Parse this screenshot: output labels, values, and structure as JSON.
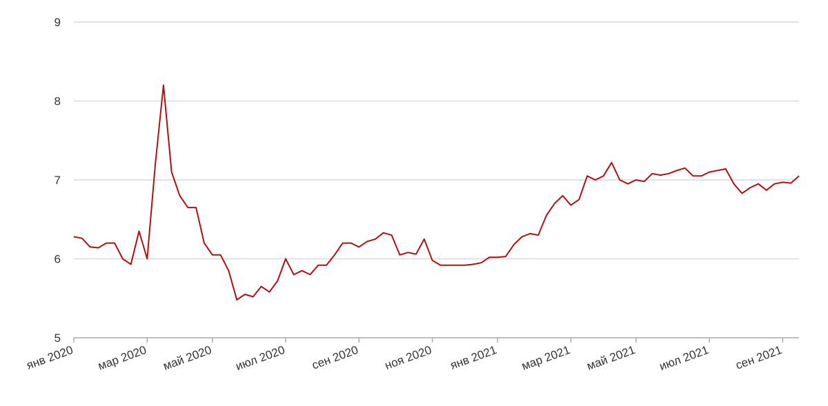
{
  "chart_data": {
    "type": "line",
    "categories": [
      "янв 2020",
      null,
      null,
      null,
      null,
      null,
      null,
      null,
      null,
      "мар 2020",
      null,
      null,
      null,
      null,
      null,
      null,
      null,
      "май 2020",
      null,
      null,
      null,
      null,
      null,
      null,
      null,
      null,
      "июл 2020",
      null,
      null,
      null,
      null,
      null,
      null,
      null,
      null,
      "сен 2020",
      null,
      null,
      null,
      null,
      null,
      null,
      null,
      null,
      "ноя 2020",
      null,
      null,
      null,
      null,
      null,
      null,
      null,
      "янв 2021",
      null,
      null,
      null,
      null,
      null,
      null,
      null,
      null,
      "мар 2021",
      null,
      null,
      null,
      null,
      null,
      null,
      null,
      "май 2021",
      null,
      null,
      null,
      null,
      null,
      null,
      null,
      null,
      "июл 2021",
      null,
      null,
      null,
      null,
      null,
      null,
      null,
      null,
      "сен 2021",
      null,
      null
    ],
    "series": [
      {
        "color": "#b30d0d",
        "values": [
          6.28,
          6.26,
          6.15,
          6.14,
          6.2,
          6.2,
          6.0,
          5.93,
          6.35,
          6.0,
          7.2,
          8.2,
          7.1,
          6.8,
          6.65,
          6.65,
          6.2,
          6.05,
          6.05,
          5.85,
          5.48,
          5.55,
          5.52,
          5.65,
          5.58,
          5.72,
          6.0,
          5.8,
          5.85,
          5.8,
          5.92,
          5.92,
          6.05,
          6.2,
          6.2,
          6.15,
          6.22,
          6.25,
          6.33,
          6.3,
          6.05,
          6.08,
          6.06,
          6.25,
          5.98,
          5.92,
          5.92,
          5.92,
          5.92,
          5.93,
          5.95,
          6.02,
          6.02,
          6.03,
          6.18,
          6.28,
          6.32,
          6.3,
          6.55,
          6.7,
          6.8,
          6.68,
          6.75,
          7.05,
          7.0,
          7.05,
          7.22,
          7.0,
          6.95,
          7.0,
          6.98,
          7.08,
          7.06,
          7.08,
          7.12,
          7.15,
          7.05,
          7.05,
          7.1,
          7.12,
          7.14,
          6.95,
          6.83,
          6.9,
          6.95,
          6.87,
          6.95,
          6.97,
          6.96,
          7.05
        ]
      }
    ],
    "ylim": [
      5,
      9
    ],
    "yticks": [
      5,
      6,
      7,
      8,
      9
    ],
    "grid": true
  }
}
